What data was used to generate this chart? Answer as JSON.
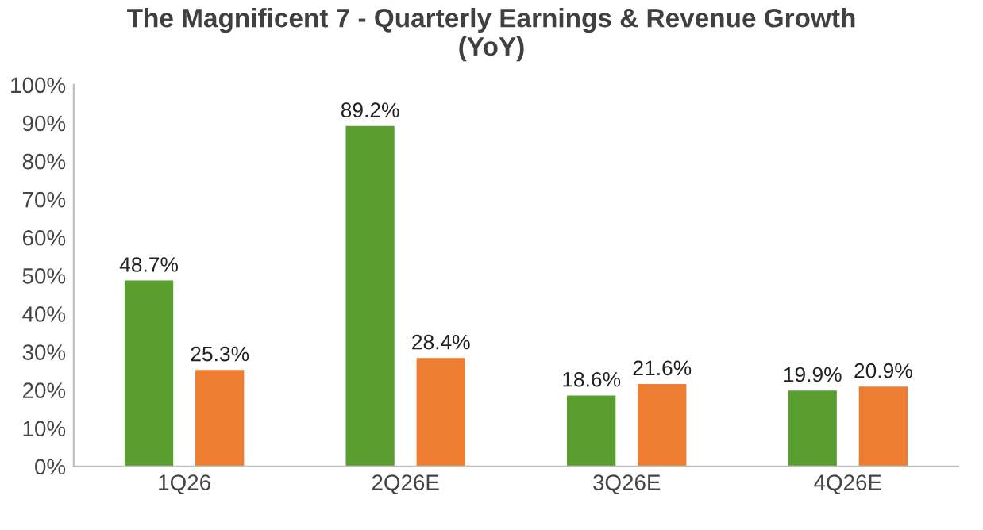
{
  "chart_data": {
    "type": "bar",
    "title": "The Magnificent 7 - Quarterly Earnings & Revenue Growth\n(YoY)",
    "categories": [
      "1Q26",
      "2Q26E",
      "3Q26E",
      "4Q26E"
    ],
    "series": [
      {
        "color": "#5a9e2f",
        "values": [
          48.7,
          89.2,
          18.6,
          19.9
        ],
        "value_labels": [
          "48.7%",
          "89.2%",
          "18.6%",
          "19.9%"
        ]
      },
      {
        "color": "#ed7d31",
        "values": [
          25.3,
          28.4,
          21.6,
          20.9
        ],
        "value_labels": [
          "25.3%",
          "28.4%",
          "21.6%",
          "20.9%"
        ]
      }
    ],
    "ylim": [
      0,
      100
    ],
    "yticks": [
      {
        "value": 0,
        "label": "0%"
      },
      {
        "value": 10,
        "label": "10%"
      },
      {
        "value": 20,
        "label": "20%"
      },
      {
        "value": 30,
        "label": "30%"
      },
      {
        "value": 40,
        "label": "40%"
      },
      {
        "value": 50,
        "label": "50%"
      },
      {
        "value": 60,
        "label": "60%"
      },
      {
        "value": 70,
        "label": "70%"
      },
      {
        "value": 80,
        "label": "80%"
      },
      {
        "value": 90,
        "label": "90%"
      },
      {
        "value": 100,
        "label": "100%"
      }
    ],
    "grid": false,
    "legend": false
  }
}
